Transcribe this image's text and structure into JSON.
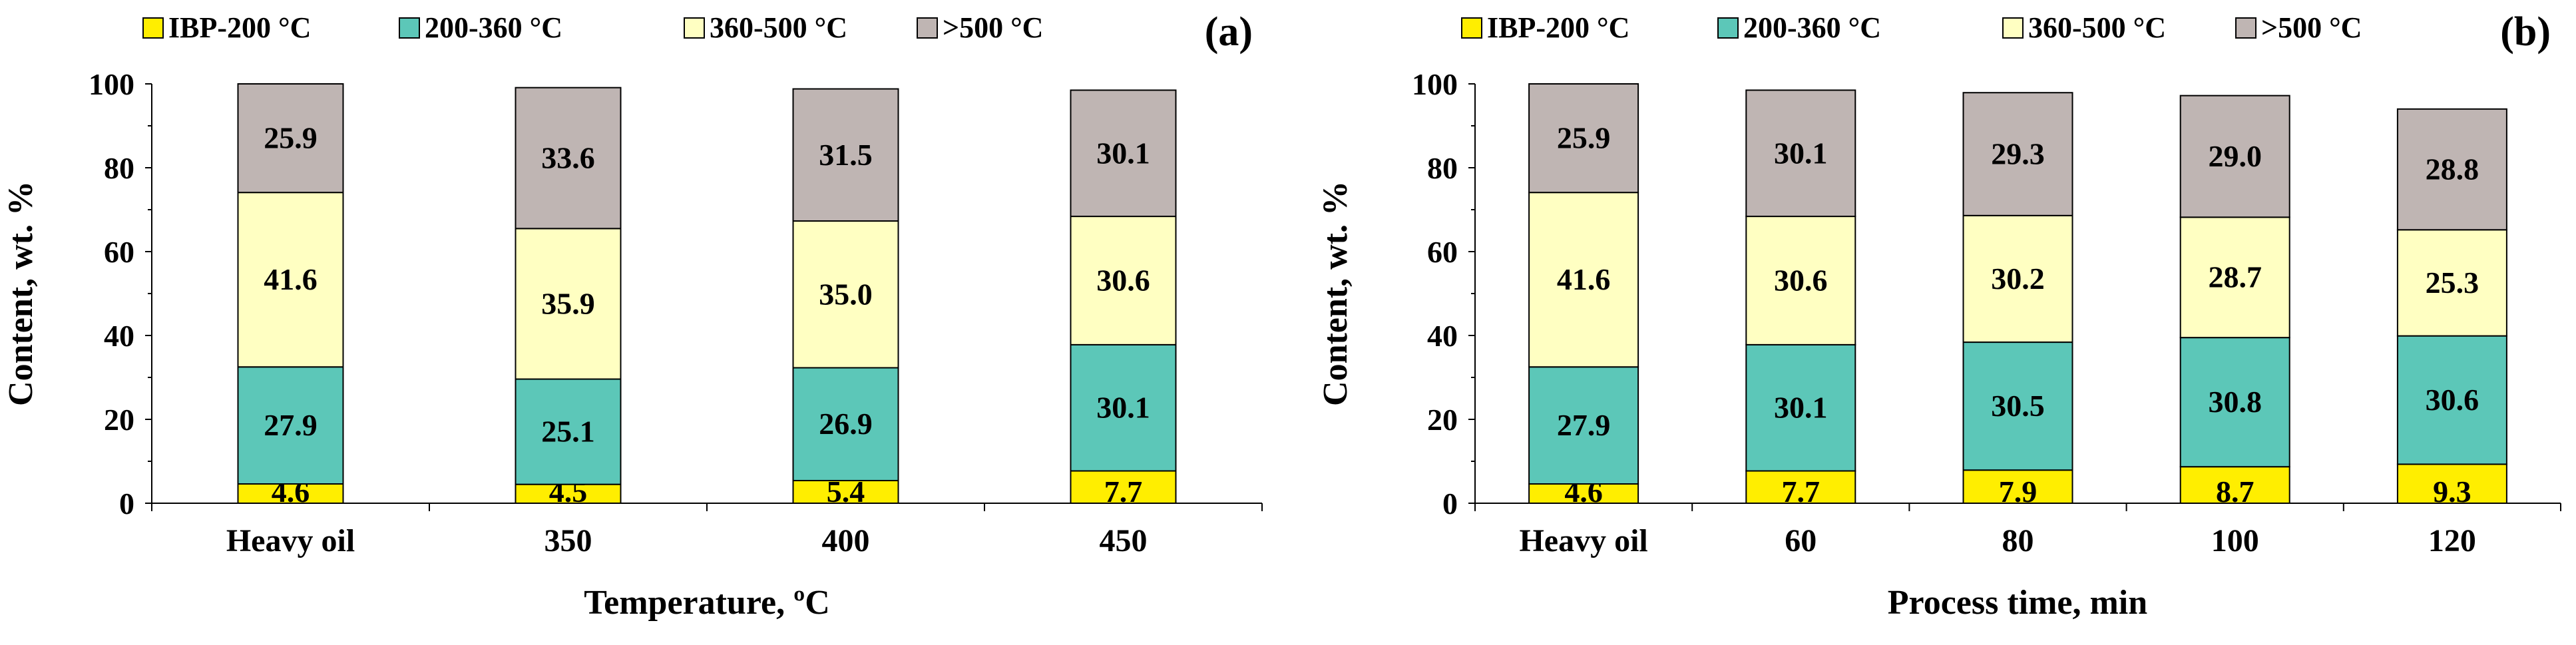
{
  "chart_data": [
    {
      "type": "bar",
      "stacked": true,
      "panel_label": "(a)",
      "xlabel": "Temperature, ºC",
      "ylabel": "Content, wt. %",
      "ylim": [
        0,
        100
      ],
      "yticks": [
        0,
        20,
        40,
        60,
        80,
        100
      ],
      "categories": [
        "Heavy oil",
        "350",
        "400",
        "450"
      ],
      "series": [
        {
          "name": "IBP-200 °C",
          "values": [
            4.6,
            4.5,
            5.4,
            7.7
          ]
        },
        {
          "name": "200-360 °C",
          "values": [
            27.9,
            25.1,
            26.9,
            30.1
          ]
        },
        {
          "name": "360-500 °C",
          "values": [
            41.6,
            35.9,
            35.0,
            30.6
          ]
        },
        {
          "name": ">500 °C",
          "values": [
            25.9,
            33.6,
            31.5,
            30.1
          ]
        }
      ],
      "legend_position": "top"
    },
    {
      "type": "bar",
      "stacked": true,
      "panel_label": "(b)",
      "xlabel": "Process time, min",
      "ylabel": "Content, wt. %",
      "ylim": [
        0,
        100
      ],
      "yticks": [
        0,
        20,
        40,
        60,
        80,
        100
      ],
      "categories": [
        "Heavy oil",
        "60",
        "80",
        "100",
        "120"
      ],
      "series": [
        {
          "name": "IBP-200 °C",
          "values": [
            4.6,
            7.7,
            7.9,
            8.7,
            9.3
          ]
        },
        {
          "name": "200-360 °C",
          "values": [
            27.9,
            30.1,
            30.5,
            30.8,
            30.6
          ]
        },
        {
          "name": "360-500 °C",
          "values": [
            41.6,
            30.6,
            30.2,
            28.7,
            25.3
          ]
        },
        {
          "name": ">500 °C",
          "values": [
            25.9,
            30.1,
            29.3,
            29.0,
            28.8
          ]
        }
      ],
      "legend_position": "top"
    }
  ],
  "colors": [
    "#ffee00",
    "#5cc7b8",
    "#ffffc2",
    "#bfb5b3"
  ]
}
